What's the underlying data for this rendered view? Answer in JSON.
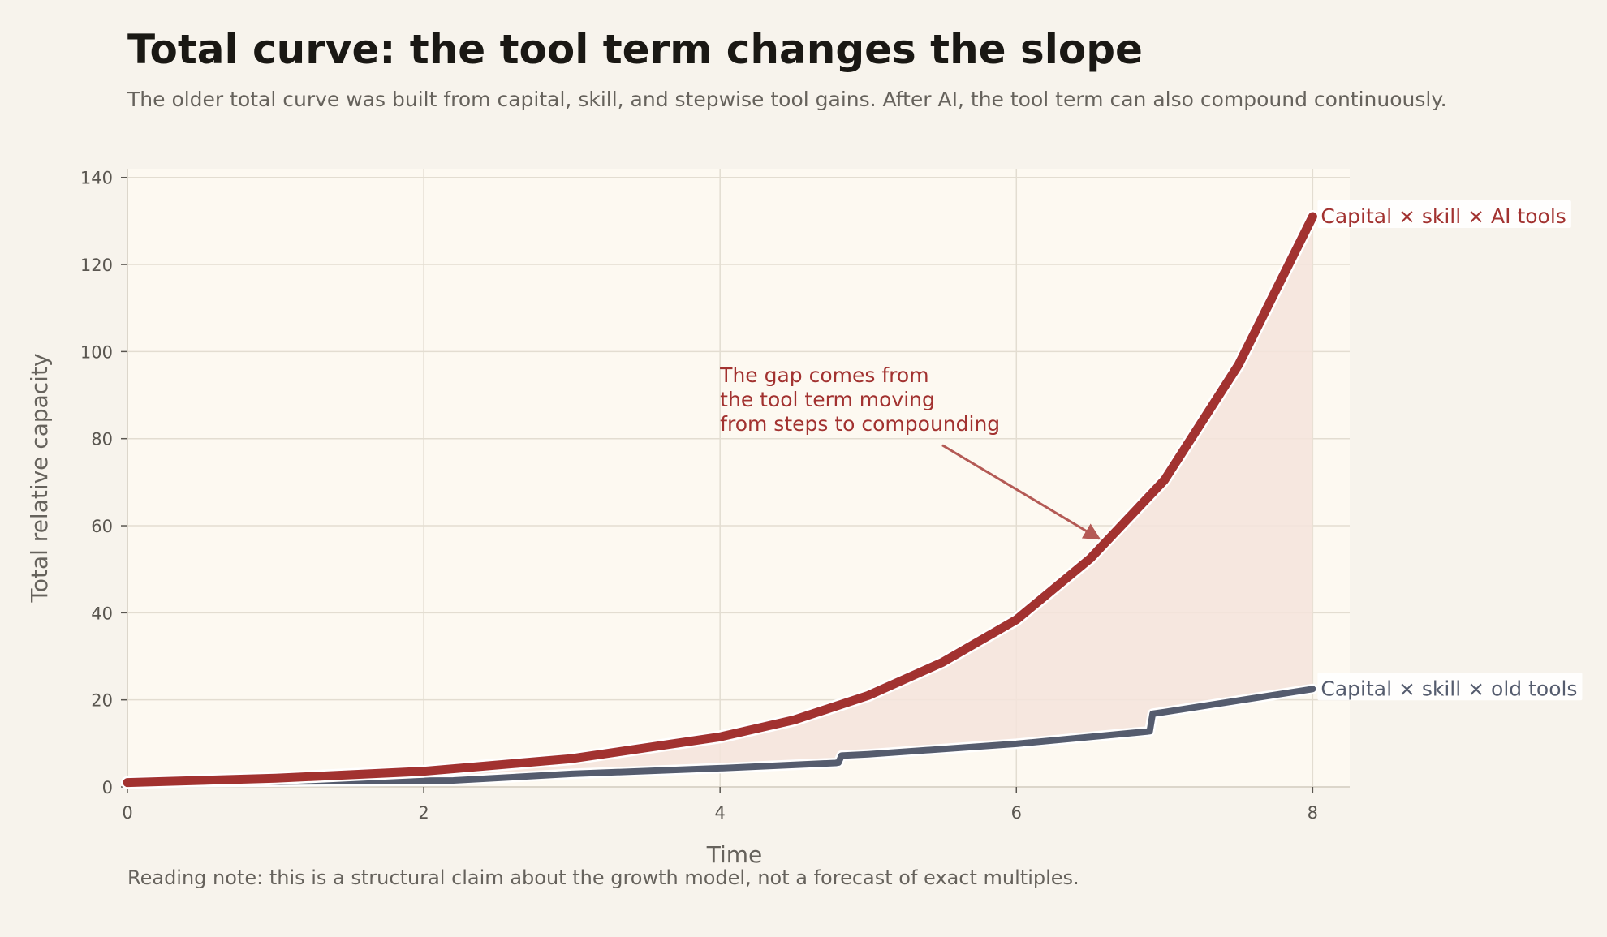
{
  "page": {
    "title": "Total curve: the tool term changes the slope",
    "subtitle": "The older total curve was built from capital, skill, and stepwise tool gains. After AI, the tool term can also compound continuously.",
    "reading_note": "Reading note: this is a structural claim about the growth model, not a forecast of exact multiples."
  },
  "chart_data": {
    "type": "line",
    "xlabel": "Time",
    "ylabel": "Total relative capacity",
    "xlim": [
      0,
      8.25
    ],
    "ylim": [
      0,
      142
    ],
    "xticks": [
      0,
      2,
      4,
      6,
      8
    ],
    "yticks": [
      0,
      20,
      40,
      60,
      80,
      100,
      120,
      140
    ],
    "grid": true,
    "fill_between_series": true,
    "series": [
      {
        "name": "Capital × skill × AI tools",
        "color": "#a23230",
        "x": [
          0,
          1,
          2,
          3,
          4,
          4.5,
          5,
          5.5,
          6,
          6.5,
          7,
          7.5,
          8
        ],
        "y": [
          1.0,
          2.0,
          3.6,
          6.5,
          11.5,
          15.4,
          21.0,
          28.6,
          38.4,
          52.5,
          70.5,
          97.0,
          131.0
        ]
      },
      {
        "name": "Capital × skill × old tools",
        "color": "#555c6e",
        "x": [
          0,
          2.2,
          3,
          4,
          4.78,
          4.8,
          4.82,
          5,
          6,
          6.88,
          6.9,
          6.92,
          7,
          8
        ],
        "y": [
          1.0,
          1.5,
          3.0,
          4.3,
          5.5,
          5.6,
          7.2,
          7.5,
          9.9,
          12.7,
          12.8,
          16.8,
          17.2,
          22.5
        ]
      }
    ],
    "annotation": {
      "lines": [
        "The gap comes from",
        "the tool term moving",
        "from steps to compounding"
      ],
      "text_at": [
        4.0,
        93
      ],
      "arrow_from": [
        5.5,
        78.5
      ],
      "arrow_to": [
        6.56,
        57
      ],
      "color": "#a23230"
    }
  }
}
